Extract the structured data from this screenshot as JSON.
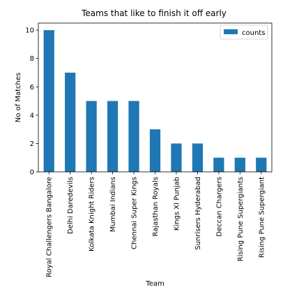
{
  "chart_data": {
    "type": "bar",
    "title": "Teams that like to finish it off early",
    "xlabel": "Team",
    "ylabel": "No of Matches",
    "categories": [
      "Royal Challengers Bangalore",
      "Delhi Daredevils",
      "Kolkata Knight Riders",
      "Mumbai Indians",
      "Chennai Super Kings",
      "Rajasthan Royals",
      "Kings XI Punjab",
      "Sunrisers Hyderabad",
      "Deccan Chargers",
      "Rising Pune Supergiants",
      "Rising Pune Supergiant"
    ],
    "series": [
      {
        "name": "counts",
        "values": [
          10,
          7,
          5,
          5,
          5,
          3,
          2,
          2,
          1,
          1,
          1
        ],
        "color": "#1f77b4"
      }
    ],
    "ylim": [
      0,
      10.5
    ],
    "yticks": [
      0,
      2,
      4,
      6,
      8,
      10
    ],
    "grid": false,
    "legend": {
      "placement": "top-right"
    }
  }
}
